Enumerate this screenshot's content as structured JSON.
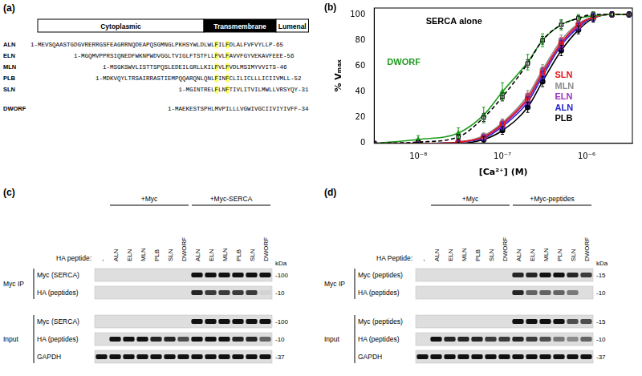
{
  "panel_a": {
    "label": "(a)",
    "domains": [
      "Cytoplasmic",
      "Transmembrane",
      "Lumenal"
    ],
    "sequences": [
      {
        "name": "ALN",
        "sequence": "1-MEVSQAASTGDGVRERRGSFEAGRRNQDEAPQSGMNGLPKHSYWLDLWLFILFDLALFVFVYLLP-65",
        "highlight": [
          50,
          53
        ]
      },
      {
        "name": "ELN",
        "sequence": "1-MGQMVPPRSIQNEDFWKNPWDVGGLTVIGLFTSTFLLFVLFAVVFGYVEKAVFEEE-56",
        "highlight": [
          38,
          41
        ]
      },
      {
        "name": "MLN",
        "sequence": "1-MSGKSWVLISTTSPQSLEDEILGRLLKILFVLFVDLMSIMYVVITS-46",
        "highlight": [
          30,
          33
        ]
      },
      {
        "name": "PLB",
        "sequence": "1-MDKVQYLTRSAIRRASTIEMPQQARQNLQNLFINFCLILICLLLICIIVMLL-52",
        "highlight": [
          32,
          35
        ]
      },
      {
        "name": "SLN",
        "sequence": "1-MGINTRELFLNFTIVLITVILMWLLVRSYQY-31",
        "highlight": [
          9,
          12
        ]
      },
      {
        "name": "DWORF",
        "sequence": "1-MAEKESTSPHLMVPILLLVGWIVGCIIVIYIVFF-34",
        "highlight": []
      }
    ]
  },
  "chart_data": {
    "panel_label": "(b)",
    "type": "line",
    "x_label": "[Ca²⁺] (M)",
    "y_label": "% Vₘₐₓ",
    "log": "x",
    "grid": false,
    "xlim": [
      3e-09,
      3.5e-06
    ],
    "xticks": [
      {
        "value": 1e-08,
        "label": "10⁻⁸"
      },
      {
        "value": 1e-07,
        "label": "10⁻⁷"
      },
      {
        "value": 1e-06,
        "label": "10⁻⁶"
      }
    ],
    "ylim": [
      0,
      105
    ],
    "yticks": [
      0,
      20,
      40,
      60,
      80,
      100
    ],
    "x": [
      3e-09,
      1e-08,
      3e-08,
      6e-08,
      1e-07,
      2e-07,
      3e-07,
      5e-07,
      8e-07,
      1.2e-06,
      2e-06,
      3.2e-06
    ],
    "series": [
      {
        "name": "SERCA alone",
        "color": "#000000",
        "marker": "square_open",
        "line_style": "dashed",
        "values": [
          0,
          1,
          5,
          20,
          36,
          62,
          80,
          92,
          97,
          100,
          100,
          100
        ],
        "errors": [
          1,
          1,
          2,
          3,
          3,
          3,
          3,
          3,
          2,
          2,
          2,
          2
        ]
      },
      {
        "name": "DWORF",
        "color": "#1f9a1f",
        "marker": "triangle",
        "line_style": "solid",
        "values": [
          0,
          3,
          8,
          22,
          40,
          63,
          80,
          92,
          97,
          99,
          100,
          100
        ],
        "errors": [
          1,
          3,
          4,
          6,
          7,
          6,
          5,
          4,
          3,
          3,
          2,
          2
        ]
      },
      {
        "name": "SLN",
        "color": "#e8141c",
        "marker": "circle",
        "line_style": "solid",
        "values": [
          0,
          0,
          1,
          5,
          15,
          35,
          55,
          78,
          92,
          98,
          100,
          100
        ],
        "errors": [
          1,
          1,
          1,
          2,
          3,
          4,
          4,
          4,
          3,
          3,
          2,
          2
        ]
      },
      {
        "name": "MLN",
        "color": "#8c8c8c",
        "marker": "circle",
        "line_style": "solid",
        "values": [
          0,
          0,
          1,
          6,
          16,
          37,
          57,
          80,
          93,
          98,
          100,
          100
        ],
        "errors": [
          1,
          1,
          1,
          2,
          3,
          4,
          4,
          4,
          3,
          3,
          2,
          2
        ]
      },
      {
        "name": "ELN",
        "color": "#9b30c0",
        "marker": "circle",
        "line_style": "solid",
        "values": [
          0,
          0,
          1,
          5,
          14,
          34,
          54,
          77,
          91,
          98,
          100,
          100
        ],
        "errors": [
          1,
          1,
          1,
          2,
          3,
          4,
          4,
          4,
          3,
          3,
          2,
          2
        ]
      },
      {
        "name": "ALN",
        "color": "#2222d0",
        "marker": "circle",
        "line_style": "solid",
        "values": [
          0,
          0,
          1,
          4,
          13,
          32,
          52,
          76,
          90,
          98,
          100,
          100
        ],
        "errors": [
          1,
          1,
          1,
          2,
          3,
          4,
          4,
          4,
          3,
          3,
          2,
          2
        ]
      },
      {
        "name": "PLB",
        "color": "#000000",
        "marker": "circle",
        "line_style": "solid",
        "values": [
          0,
          0,
          0,
          3,
          10,
          28,
          48,
          72,
          88,
          97,
          100,
          100
        ],
        "errors": [
          1,
          1,
          1,
          2,
          3,
          4,
          4,
          4,
          3,
          3,
          2,
          2
        ]
      }
    ]
  },
  "panel_c": {
    "label": "(c)",
    "groups": [
      {
        "label": "+Myc",
        "first_lane": 1,
        "last_lane": 6
      },
      {
        "label": "+Myc-SERCA",
        "first_lane": 7,
        "last_lane": 12
      }
    ],
    "lane_title": "HA peptide:",
    "lanes": [
      "-",
      "ALN",
      "ELN",
      "MLN",
      "PLB",
      "SLN",
      "DWORF",
      "ALN",
      "ELN",
      "MLN",
      "PLB",
      "SLN",
      "DWORF"
    ],
    "kda_title": "kDa",
    "sections": [
      {
        "label": "Myc IP",
        "rows": [
          {
            "label": "Myc (SERCA)",
            "kda": "-100",
            "bands": [
              0,
              0,
              0,
              0,
              0,
              0,
              0,
              1,
              1,
              1,
              1,
              1,
              1
            ]
          },
          {
            "label": "HA (peptides)",
            "kda": "-10",
            "bands": [
              0,
              0,
              0,
              0,
              0,
              0,
              0,
              0.9,
              0.8,
              0.8,
              0.8,
              0.8,
              0.05
            ]
          }
        ]
      },
      {
        "label": "Input",
        "rows": [
          {
            "label": "Myc (SERCA)",
            "kda": "-100",
            "bands": [
              0,
              0,
              0,
              0,
              0,
              0,
              0,
              1,
              1,
              1,
              1,
              1,
              1
            ]
          },
          {
            "label": "HA (peptides)",
            "kda": "-10",
            "bands": [
              0,
              1,
              1,
              1,
              0.9,
              0.9,
              0.7,
              1,
              1,
              1,
              0.9,
              0.9,
              0.6
            ]
          },
          {
            "label": "GAPDH",
            "kda": "-37",
            "bands": [
              1,
              1,
              1,
              1,
              1,
              1,
              1,
              1,
              1,
              1,
              1,
              1,
              1
            ]
          }
        ]
      }
    ]
  },
  "panel_d": {
    "label": "(d)",
    "groups": [
      {
        "label": "+Myc",
        "first_lane": 1,
        "last_lane": 6
      },
      {
        "label": "+Myc-peptides",
        "first_lane": 7,
        "last_lane": 12
      }
    ],
    "lane_title": "HA Peptide:",
    "lanes": [
      "-",
      "ALN",
      "ELN",
      "MLN",
      "PLB",
      "SLN",
      "DWORF",
      "ALN",
      "ELN",
      "MLN",
      "PLN",
      "SLN",
      "DWORF"
    ],
    "kda_title": "kDa",
    "sections": [
      {
        "label": "Myc IP",
        "rows": [
          {
            "label": "Myc (peptides)",
            "kda": "-15",
            "bands": [
              0,
              0,
              0,
              0,
              0,
              0,
              0,
              0.9,
              0.9,
              1,
              1,
              0.9,
              0.8
            ]
          },
          {
            "label": "HA (peptides)",
            "kda": "-10",
            "bands": [
              0,
              0,
              0,
              0,
              0,
              0,
              0,
              0.9,
              0.6,
              0.6,
              0.6,
              0.5,
              0
            ]
          }
        ]
      },
      {
        "label": "Input",
        "rows": [
          {
            "label": "Myc (peptides)",
            "kda": "-15",
            "bands": [
              0,
              0,
              0,
              0,
              0,
              0,
              0,
              1,
              1,
              1,
              1,
              0.7,
              0.7
            ]
          },
          {
            "label": "HA (peptides)",
            "kda": "-10",
            "bands": [
              0,
              1,
              0.9,
              0.9,
              0.9,
              0.8,
              0.8,
              0.9,
              0.8,
              0.7,
              0.5,
              0.4,
              0.6
            ]
          },
          {
            "label": "GAPDH",
            "kda": "-37",
            "bands": [
              1,
              1,
              1,
              1,
              1,
              1,
              1,
              1,
              1,
              1,
              1,
              1,
              1
            ]
          }
        ]
      }
    ]
  }
}
